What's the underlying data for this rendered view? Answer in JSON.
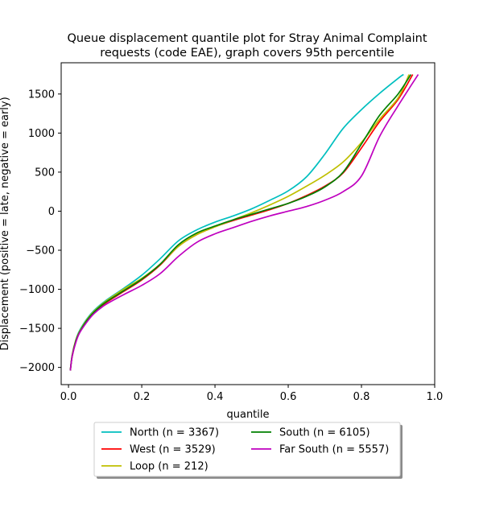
{
  "chart_data": {
    "type": "line",
    "title_lines": [
      "Queue displacement quantile plot for Stray Animal Complaint",
      "requests (code EAE), graph covers 95th percentile"
    ],
    "xlabel": "quantile",
    "ylabel": "Displacement (positive = late, negative = early)",
    "xlim": [
      -0.02,
      1.0
    ],
    "ylim": [
      -2220,
      1900
    ],
    "xticks": [
      0.0,
      0.2,
      0.4,
      0.6,
      0.8,
      1.0
    ],
    "xtick_labels": [
      "0.0",
      "0.2",
      "0.4",
      "0.6",
      "0.8",
      "1.0"
    ],
    "yticks": [
      -2000,
      -1500,
      -1000,
      -500,
      0,
      500,
      1000,
      1500
    ],
    "ytick_labels": [
      "−2000",
      "−1500",
      "−1000",
      "−500",
      "0",
      "500",
      "1000",
      "1500"
    ],
    "grid": false,
    "legend_placement": "below plot, two columns",
    "series": [
      {
        "name": "North (n = 3367)",
        "color": "#00bfbf",
        "x": [
          0.005,
          0.01,
          0.02,
          0.03,
          0.05,
          0.07,
          0.1,
          0.15,
          0.2,
          0.25,
          0.3,
          0.35,
          0.4,
          0.45,
          0.5,
          0.55,
          0.6,
          0.65,
          0.7,
          0.75,
          0.8,
          0.85,
          0.9,
          0.915
        ],
        "y": [
          -2040,
          -1850,
          -1650,
          -1530,
          -1380,
          -1270,
          -1150,
          -990,
          -820,
          -610,
          -380,
          -240,
          -140,
          -60,
          30,
          140,
          260,
          440,
          730,
          1060,
          1300,
          1510,
          1700,
          1750
        ]
      },
      {
        "name": "West (n = 3529)",
        "color": "#ff0000",
        "x": [
          0.005,
          0.01,
          0.02,
          0.03,
          0.05,
          0.07,
          0.1,
          0.15,
          0.2,
          0.25,
          0.3,
          0.35,
          0.4,
          0.45,
          0.5,
          0.55,
          0.6,
          0.65,
          0.7,
          0.75,
          0.8,
          0.85,
          0.9,
          0.94
        ],
        "y": [
          -2040,
          -1860,
          -1670,
          -1550,
          -1400,
          -1290,
          -1180,
          -1030,
          -880,
          -690,
          -450,
          -300,
          -200,
          -120,
          -50,
          20,
          100,
          200,
          320,
          490,
          810,
          1150,
          1430,
          1750
        ]
      },
      {
        "name": "Loop (n = 212)",
        "color": "#bfbf00",
        "x": [
          0.005,
          0.01,
          0.02,
          0.03,
          0.05,
          0.07,
          0.1,
          0.15,
          0.2,
          0.25,
          0.3,
          0.35,
          0.4,
          0.45,
          0.5,
          0.55,
          0.6,
          0.65,
          0.7,
          0.75,
          0.8,
          0.85,
          0.9,
          0.93
        ],
        "y": [
          -2040,
          -1840,
          -1650,
          -1540,
          -1390,
          -1280,
          -1160,
          -1000,
          -860,
          -680,
          -450,
          -300,
          -200,
          -110,
          -20,
          80,
          190,
          320,
          460,
          630,
          880,
          1180,
          1450,
          1750
        ]
      },
      {
        "name": "South (n = 6105)",
        "color": "#008000",
        "x": [
          0.005,
          0.01,
          0.02,
          0.03,
          0.05,
          0.07,
          0.1,
          0.15,
          0.2,
          0.25,
          0.3,
          0.35,
          0.4,
          0.45,
          0.5,
          0.55,
          0.6,
          0.65,
          0.7,
          0.75,
          0.8,
          0.85,
          0.9,
          0.935
        ],
        "y": [
          -2040,
          -1850,
          -1660,
          -1550,
          -1400,
          -1290,
          -1170,
          -1020,
          -870,
          -680,
          -430,
          -280,
          -190,
          -110,
          -40,
          30,
          100,
          190,
          310,
          500,
          860,
          1230,
          1500,
          1750
        ]
      },
      {
        "name": "Far South (n = 5557)",
        "color": "#bf00bf",
        "x": [
          0.005,
          0.01,
          0.02,
          0.03,
          0.05,
          0.07,
          0.1,
          0.15,
          0.2,
          0.25,
          0.3,
          0.35,
          0.4,
          0.45,
          0.5,
          0.55,
          0.6,
          0.65,
          0.7,
          0.75,
          0.8,
          0.85,
          0.9,
          0.955
        ],
        "y": [
          -2040,
          -1860,
          -1680,
          -1560,
          -1420,
          -1310,
          -1200,
          -1070,
          -950,
          -800,
          -580,
          -400,
          -290,
          -210,
          -130,
          -60,
          0,
          60,
          140,
          250,
          450,
          960,
          1350,
          1750
        ]
      }
    ]
  }
}
